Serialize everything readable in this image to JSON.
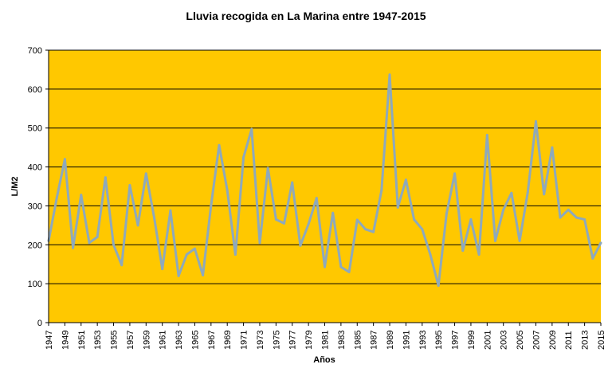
{
  "chart_data": {
    "type": "line",
    "title": "Lluvia recogida en La Marina entre 1947-2015",
    "xlabel": "Años",
    "ylabel": "L/M2",
    "ylim": [
      0,
      700
    ],
    "yticks": [
      0,
      100,
      200,
      300,
      400,
      500,
      600,
      700
    ],
    "x_tick_labels": [
      "1947",
      "1949",
      "1951",
      "1953",
      "1955",
      "1957",
      "1959",
      "1961",
      "1963",
      "1965",
      "1967",
      "1969",
      "1971",
      "1973",
      "1975",
      "1977",
      "1979",
      "1981",
      "1983",
      "1985",
      "1987",
      "1989",
      "1991",
      "1993",
      "1995",
      "1997",
      "1999",
      "2001",
      "2003",
      "2005",
      "2007",
      "2009",
      "2011",
      "2013",
      "2015"
    ],
    "grid": true,
    "legend": "none",
    "colors": {
      "plot_background": "#FFC800",
      "line": "#8EA9BC",
      "grid": "#000000"
    },
    "series": [
      {
        "x": [
          1947,
          1948,
          1949,
          1950,
          1951,
          1952,
          1953,
          1954,
          1955,
          1956,
          1957,
          1958,
          1959,
          1960,
          1961,
          1962,
          1963,
          1964,
          1965,
          1966,
          1967,
          1968,
          1969,
          1970,
          1971,
          1972,
          1973,
          1974,
          1975,
          1976,
          1977,
          1978,
          1979,
          1980,
          1981,
          1982,
          1983,
          1984,
          1985,
          1986,
          1987,
          1988,
          1989,
          1990,
          1991,
          1992,
          1993,
          1994,
          1995,
          1996,
          1997,
          1998,
          1999,
          2000,
          2001,
          2002,
          2003,
          2004,
          2005,
          2006,
          2007,
          2008,
          2009,
          2010,
          2011,
          2012,
          2013,
          2014,
          2015
        ],
        "values": [
          210,
          320,
          420,
          192,
          328,
          205,
          220,
          373,
          200,
          148,
          353,
          250,
          383,
          270,
          138,
          288,
          120,
          175,
          190,
          122,
          300,
          456,
          340,
          175,
          425,
          497,
          205,
          397,
          265,
          255,
          360,
          198,
          253,
          320,
          143,
          282,
          143,
          130,
          264,
          240,
          233,
          340,
          637,
          296,
          367,
          265,
          240,
          175,
          95,
          280,
          383,
          185,
          265,
          175,
          482,
          210,
          290,
          333,
          210,
          335,
          517,
          330,
          450,
          270,
          290,
          270,
          265,
          165,
          205
        ]
      }
    ]
  }
}
